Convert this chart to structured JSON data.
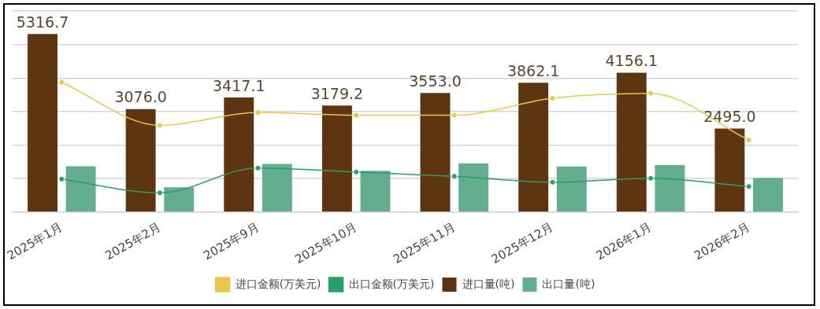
{
  "chart_data": {
    "type": "bar",
    "categories": [
      "2025年1月",
      "2025年2月",
      "2025年9月",
      "2025年10月",
      "2025年11月",
      "2025年12月",
      "2026年1月",
      "2026年2月"
    ],
    "series": [
      {
        "name": "进口量(吨)",
        "color": "#5e3510",
        "values": [
          5316.7,
          3076.0,
          3417.1,
          3179.2,
          3553.0,
          3862.1,
          4156.1,
          2495.0
        ],
        "value_labels": [
          "5316.7",
          "3076.0",
          "3417.1",
          "3179.2",
          "3553.0",
          "3862.1",
          "4156.1",
          "2495.0"
        ]
      },
      {
        "name": "出口量(吨)",
        "color": "#62ae8e",
        "values": [
          1365,
          740,
          1435,
          1235,
          1455,
          1360,
          1400,
          1020
        ]
      },
      {
        "name": "进口金额(万美元)",
        "type": "line",
        "color": "#e8c84a",
        "values": [
          3870,
          2585,
          2975,
          2890,
          2890,
          3395,
          3545,
          2150
        ]
      },
      {
        "name": "出口金额(万美元)",
        "type": "line",
        "color": "#2a9d6a",
        "values": [
          985,
          575,
          1315,
          1195,
          1070,
          890,
          1010,
          765
        ]
      }
    ],
    "ylim": [
      0,
      6000
    ],
    "yticks": [
      {
        "value": 0,
        "label": null
      },
      {
        "value": 1000,
        "label": null
      },
      {
        "value": 2000,
        "label": null
      },
      {
        "value": 3000,
        "label": null
      },
      {
        "value": 4000,
        "label": null
      },
      {
        "value": 5000,
        "label": null
      },
      {
        "value": 6000,
        "label": null
      }
    ],
    "tick_labels": "x",
    "grid": "y",
    "legend": "bottom",
    "marker": "circle"
  }
}
